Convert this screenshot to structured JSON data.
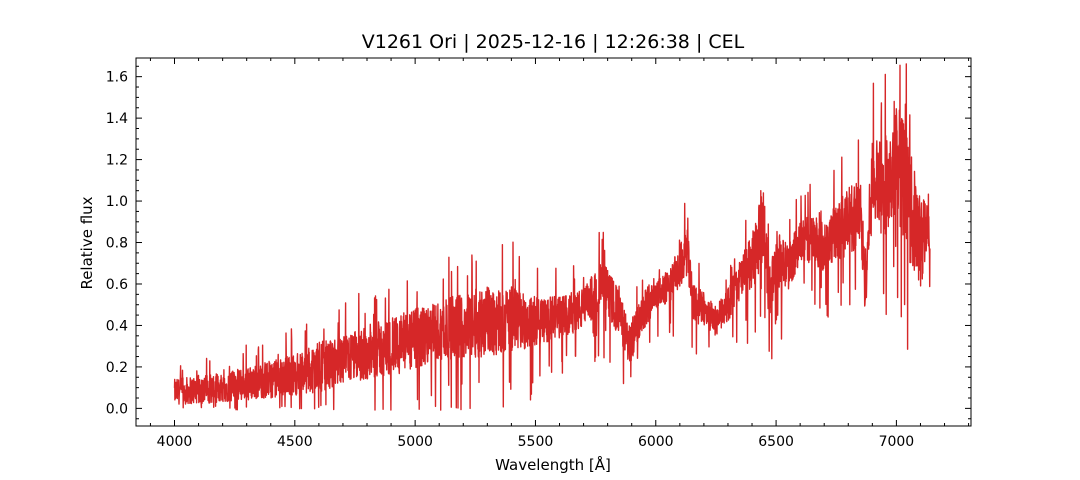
{
  "chart_data": {
    "type": "line",
    "title": "V1261 Ori | 2025-12-16 | 12:26:38 | CEL",
    "xlabel": "Wavelength [Å]",
    "ylabel": "Relative flux",
    "xlim": [
      3840,
      7310
    ],
    "ylim": [
      -0.085,
      1.69
    ],
    "xticks": [
      4000,
      4500,
      5000,
      5500,
      6000,
      6500,
      7000
    ],
    "yticks": [
      0.0,
      0.2,
      0.4,
      0.6,
      0.8,
      1.0,
      1.2,
      1.4,
      1.6
    ],
    "grid": false,
    "series_color": "#d62728",
    "series": [
      {
        "x": [
          4000,
          4100,
          4200,
          4300,
          4400,
          4500,
          4600,
          4700,
          4800,
          4900,
          5000,
          5100,
          5200,
          5300,
          5400,
          5500,
          5600,
          5700,
          5780,
          5850,
          5890,
          5950,
          6000,
          6050,
          6100,
          6130,
          6160,
          6200,
          6250,
          6300,
          6350,
          6400,
          6450,
          6470,
          6500,
          6550,
          6600,
          6650,
          6700,
          6750,
          6800,
          6850,
          6870,
          6900,
          6950,
          7000,
          7050,
          7100,
          7140
        ],
        "y": [
          0.08,
          0.09,
          0.1,
          0.12,
          0.14,
          0.16,
          0.2,
          0.23,
          0.27,
          0.3,
          0.33,
          0.37,
          0.4,
          0.42,
          0.43,
          0.42,
          0.44,
          0.48,
          0.6,
          0.45,
          0.3,
          0.48,
          0.56,
          0.58,
          0.68,
          0.75,
          0.5,
          0.48,
          0.42,
          0.5,
          0.62,
          0.7,
          0.9,
          0.55,
          0.72,
          0.68,
          0.8,
          0.82,
          0.78,
          0.85,
          0.9,
          0.95,
          0.6,
          1.1,
          1.05,
          1.25,
          1.0,
          0.8,
          0.9
        ],
        "spread": [
          0.06,
          0.07,
          0.07,
          0.08,
          0.09,
          0.1,
          0.12,
          0.12,
          0.13,
          0.14,
          0.15,
          0.15,
          0.16,
          0.17,
          0.16,
          0.12,
          0.1,
          0.1,
          0.12,
          0.11,
          0.1,
          0.1,
          0.08,
          0.08,
          0.11,
          0.12,
          0.1,
          0.08,
          0.07,
          0.08,
          0.1,
          0.14,
          0.18,
          0.12,
          0.14,
          0.11,
          0.1,
          0.12,
          0.12,
          0.14,
          0.16,
          0.18,
          0.15,
          0.2,
          0.24,
          0.3,
          0.28,
          0.22,
          0.15
        ]
      }
    ]
  }
}
